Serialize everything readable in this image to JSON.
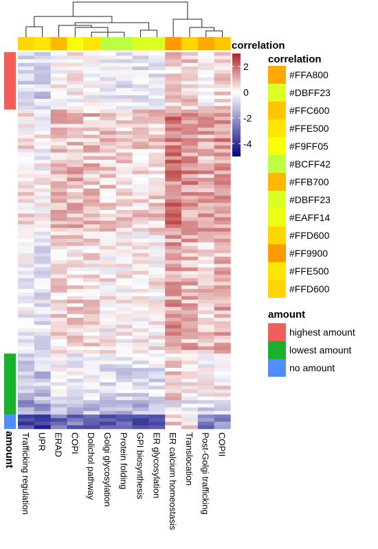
{
  "chart_data": {
    "type": "heatmap",
    "columns": [
      "Trafficking regulation",
      "UPR",
      "ERAD",
      "COPI",
      "Dolichol pathway",
      "Golgi glycosylation",
      "Protein folding",
      "GPI biosynthesis",
      "ER glycosylation",
      "ER calcium homeostasis",
      "Translocation",
      "Post-Golgi trafficking",
      "COPII"
    ],
    "column_annotation": {
      "title": "correlation",
      "colors": [
        "#FFD600",
        "#FFE500",
        "#FFB700",
        "#F9FF05",
        "#FFE500",
        "#BCFF42",
        "#BCFF42",
        "#DBFF23",
        "#DBFF23",
        "#FF9900",
        "#FFD600",
        "#FFA800",
        "#FFC600"
      ]
    },
    "row_annotation": {
      "title": "amount",
      "groups": [
        {
          "label": "highest amount",
          "color": "#F35E5A",
          "rows": 16
        },
        {
          "label": "",
          "color": "#FFFFFF",
          "rows": 68
        },
        {
          "label": "lowest amount",
          "color": "#17B12B",
          "rows": 17
        },
        {
          "label": "no amount",
          "color": "#4F8DF9",
          "rows": 4
        }
      ]
    },
    "scale": {
      "title": "correlation",
      "min": -5,
      "max": 3,
      "ticks": [
        2,
        0,
        -2,
        -4
      ],
      "low_color": "#000080",
      "mid_color": "#FFFFFF",
      "high_color": "#B22222"
    },
    "legend_correlation": {
      "title": "correlation",
      "entries": [
        "#FFA800",
        "#DBFF23",
        "#FFC600",
        "#FFE500",
        "#F9FF05",
        "#BCFF42",
        "#FFB700",
        "#DBFF23",
        "#EAFF14",
        "#FFD600",
        "#FF9900",
        "#FFE500",
        "#FFD600"
      ]
    },
    "legend_amount": {
      "title": "amount",
      "entries": [
        {
          "label": "highest amount",
          "color": "#F35E5A"
        },
        {
          "label": "lowest amount",
          "color": "#17B12B"
        },
        {
          "label": "no amount",
          "color": "#4F8DF9"
        }
      ]
    },
    "row_annotation_label": "amount",
    "n_rows": 105,
    "dendrogram": {
      "merges": [
        [
          7,
          8
        ],
        [
          4,
          6
        ],
        [
          3,
          5
        ],
        [
          11,
          12
        ],
        [
          10,
          11
        ],
        [
          2,
          3
        ],
        [
          1,
          2
        ],
        [
          0,
          1
        ],
        [
          9,
          10
        ],
        [
          0,
          9
        ]
      ]
    }
  }
}
